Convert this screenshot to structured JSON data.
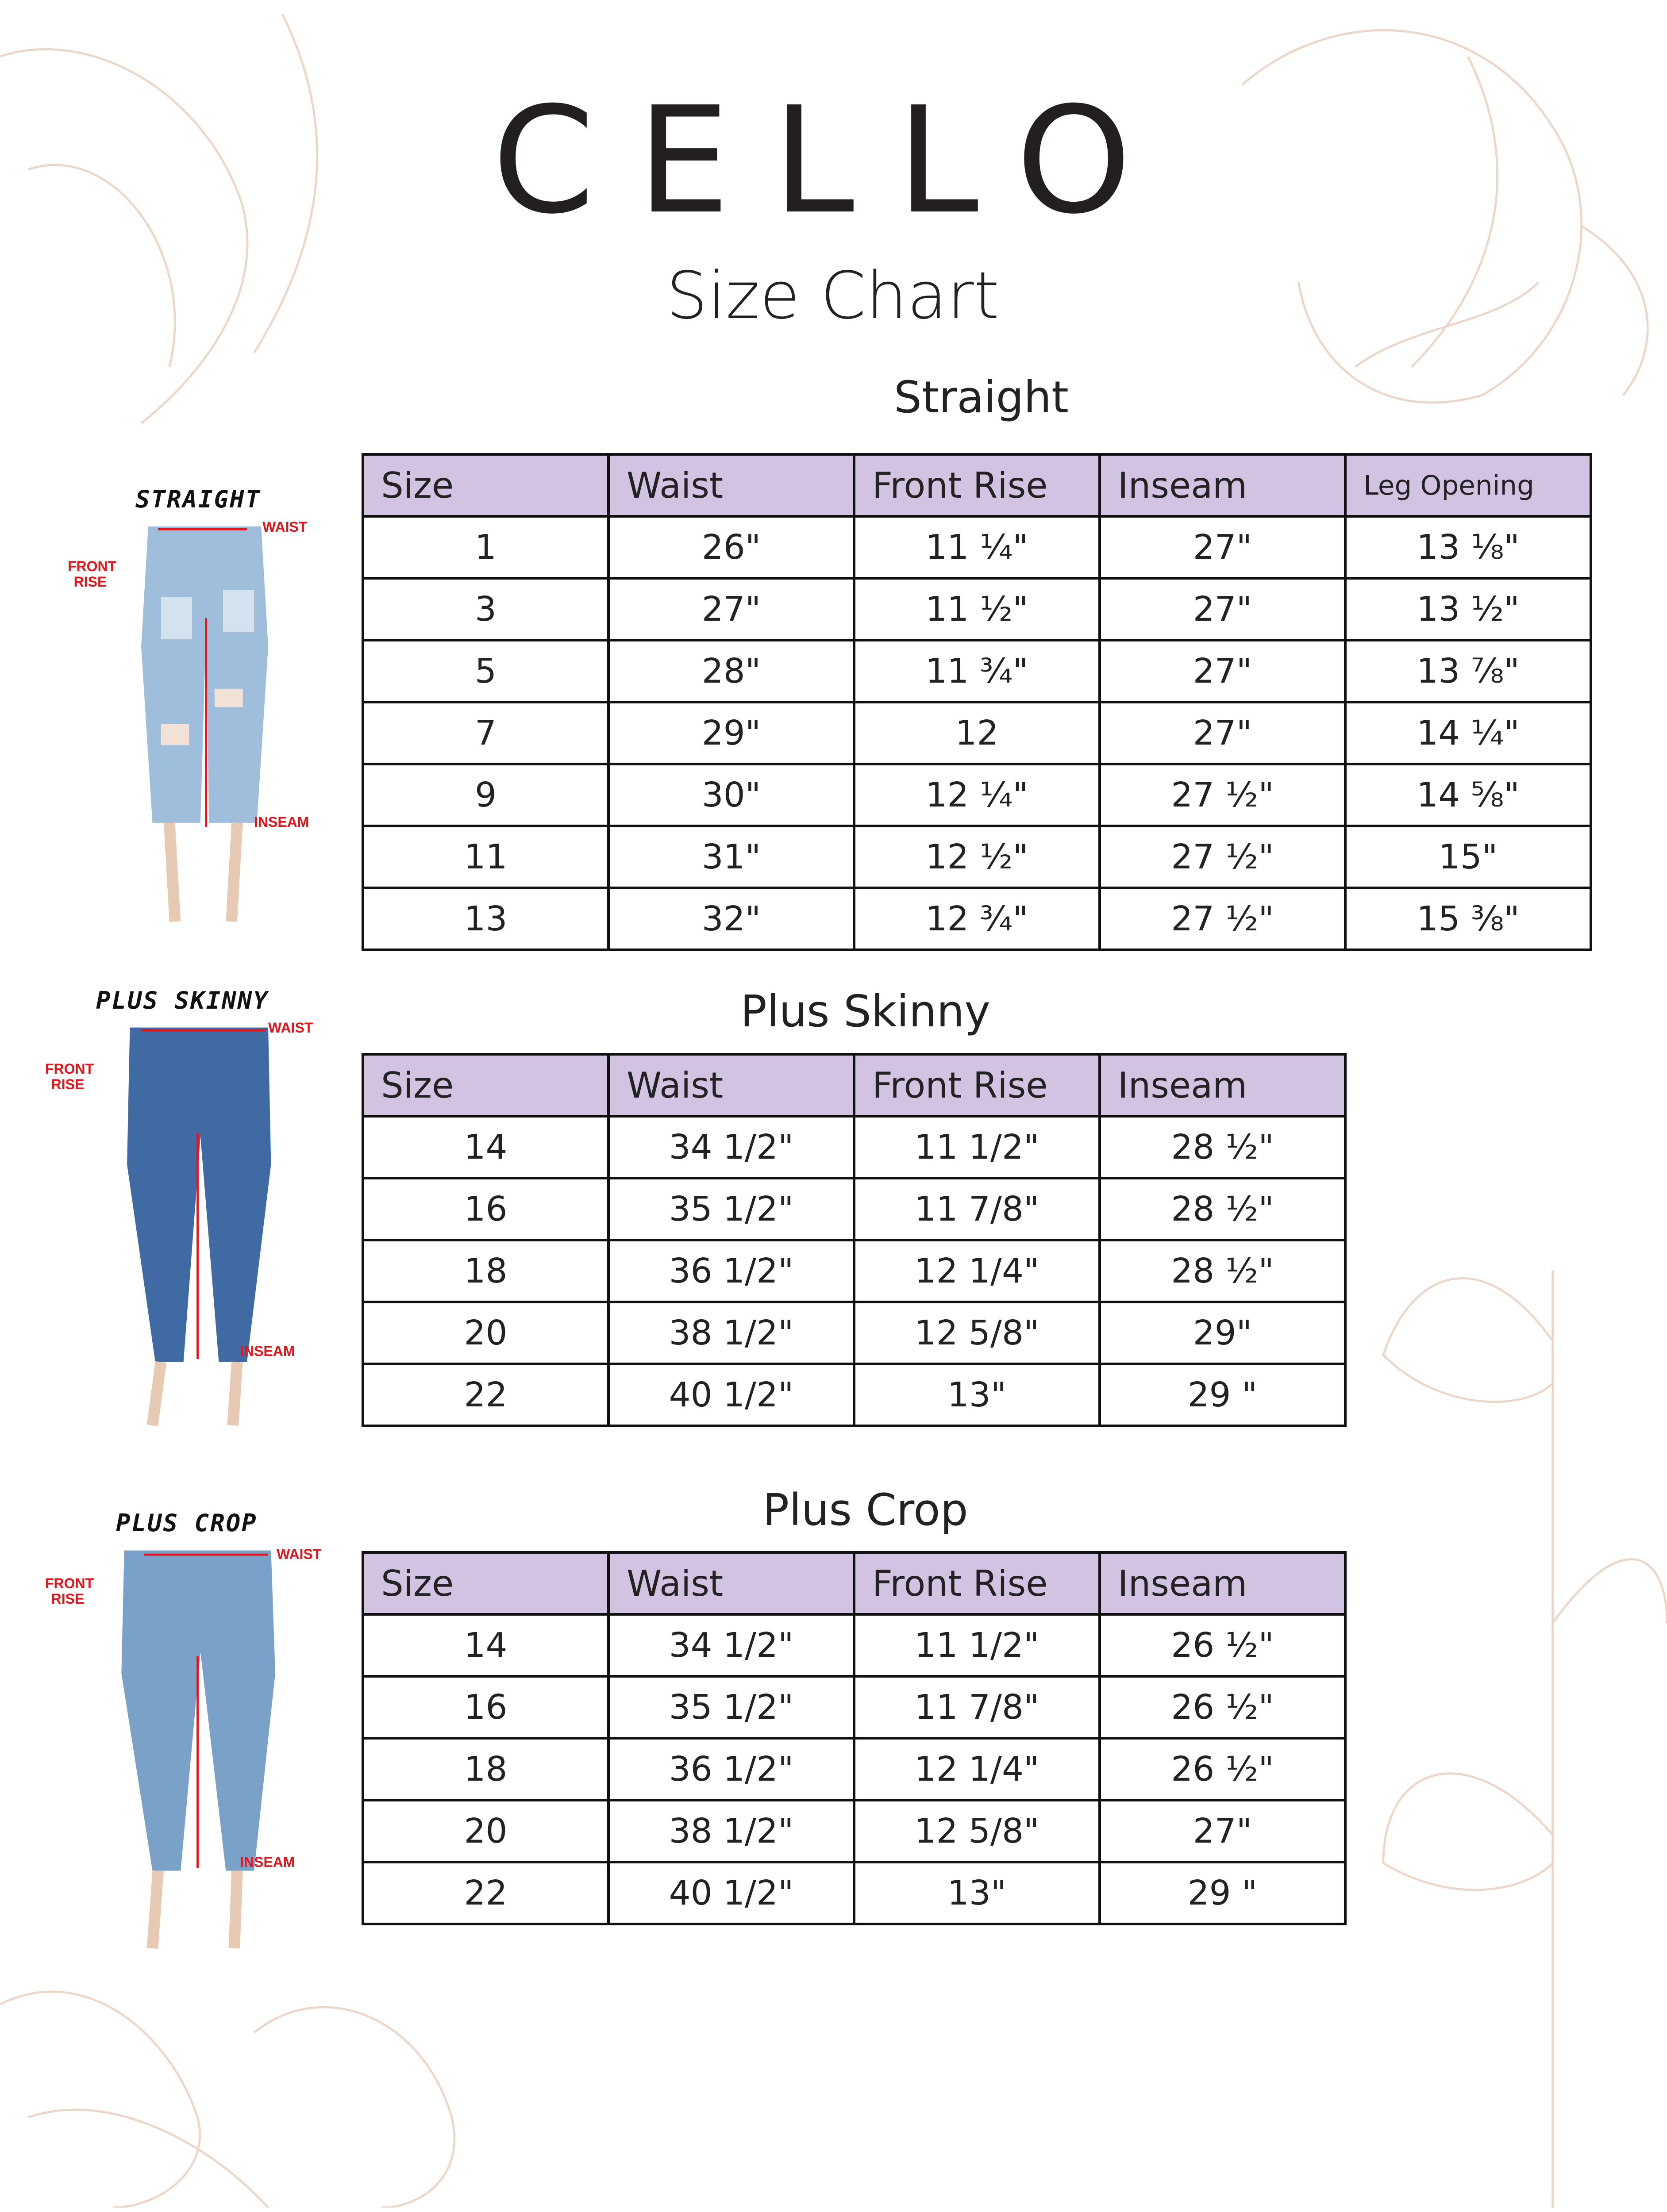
{
  "brand": "CELLO",
  "subtitle": "Size Chart",
  "colors": {
    "header_fill": "#d3c3e3",
    "measure_red": "#e3141b",
    "flower_line": "#ead2c4"
  },
  "measure_labels": {
    "waist": "WAIST",
    "front_rise": "FRONT RISE",
    "inseam": "INSEAM"
  },
  "sections": [
    {
      "title": "Straight",
      "image_label": "STRAIGHT",
      "columns": [
        "Size",
        "Waist",
        "Front Rise",
        "Inseam",
        "Leg Opening"
      ],
      "rows": [
        [
          "1",
          "26\"",
          "11 ¼\"",
          "27\"",
          "13 ⅛\""
        ],
        [
          "3",
          "27\"",
          "11 ½\"",
          "27\"",
          "13 ½\""
        ],
        [
          "5",
          "28\"",
          "11 ¾\"",
          "27\"",
          "13 ⅞\""
        ],
        [
          "7",
          "29\"",
          "12",
          "27\"",
          "14 ¼\""
        ],
        [
          "9",
          "30\"",
          "12 ¼\"",
          "27 ½\"",
          "14 ⅝\""
        ],
        [
          "11",
          "31\"",
          "12 ½\"",
          "27 ½\"",
          "15\""
        ],
        [
          "13",
          "32\"",
          "12 ¾\"",
          "27 ½\"",
          "15 ⅜\""
        ]
      ]
    },
    {
      "title": "Plus Skinny",
      "image_label": "PLUS SKINNY",
      "columns": [
        "Size",
        "Waist",
        "Front Rise",
        "Inseam"
      ],
      "rows": [
        [
          "14",
          "34 1/2\"",
          "11 1/2\"",
          "28 ½\""
        ],
        [
          "16",
          "35 1/2\"",
          "11 7/8\"",
          "28 ½\""
        ],
        [
          "18",
          "36 1/2\"",
          "12 1/4\"",
          "28 ½\""
        ],
        [
          "20",
          "38 1/2\"",
          "12 5/8\"",
          "29\""
        ],
        [
          "22",
          "40 1/2\"",
          "13\"",
          "29 \""
        ]
      ]
    },
    {
      "title": "Plus Crop",
      "image_label": "PLUS CROP",
      "columns": [
        "Size",
        "Waist",
        "Front Rise",
        "Inseam"
      ],
      "rows": [
        [
          "14",
          "34 1/2\"",
          "11 1/2\"",
          "26 ½\""
        ],
        [
          "16",
          "35 1/2\"",
          "11 7/8\"",
          "26 ½\""
        ],
        [
          "18",
          "36 1/2\"",
          "12 1/4\"",
          "26 ½\""
        ],
        [
          "20",
          "38 1/2\"",
          "12 5/8\"",
          "27\""
        ],
        [
          "22",
          "40 1/2\"",
          "13\"",
          "29 \""
        ]
      ]
    }
  ]
}
